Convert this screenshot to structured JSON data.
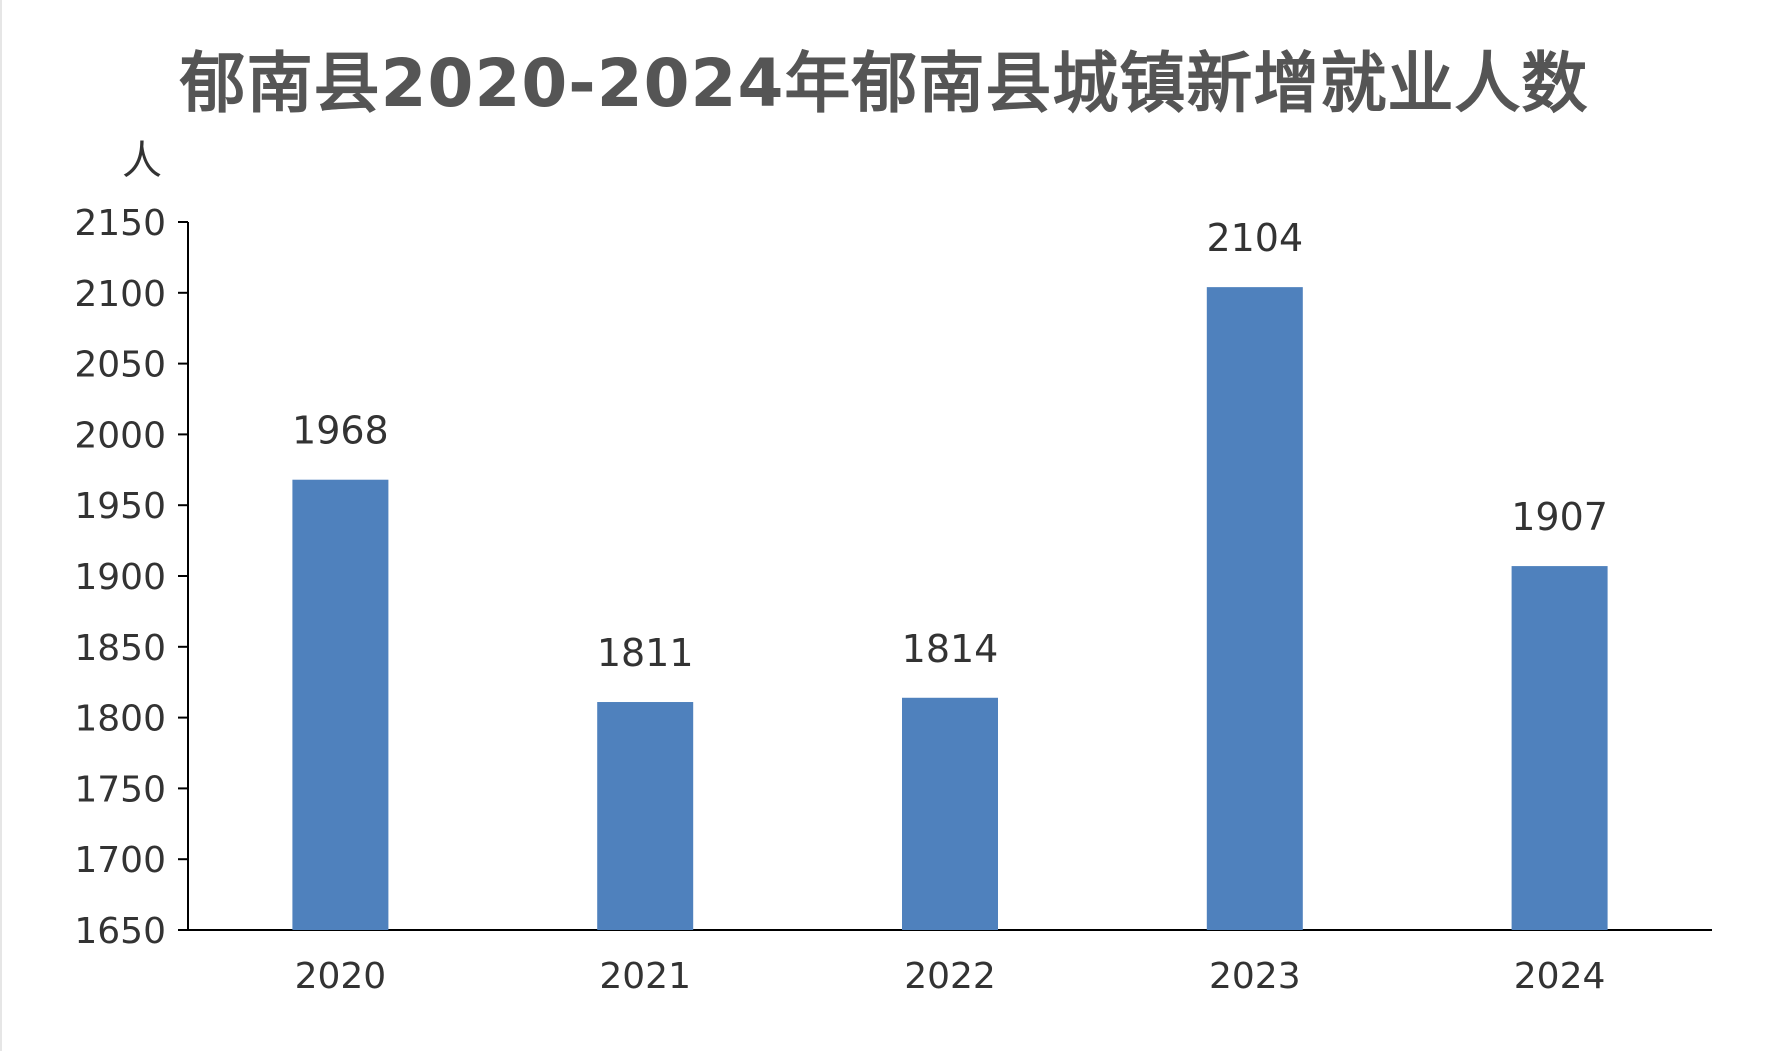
{
  "chart_data": {
    "type": "bar",
    "title": "郁南县2020-2024年郁南县城镇新增就业人数",
    "ylabel": "人",
    "xlabel": "",
    "categories": [
      "2020",
      "2021",
      "2022",
      "2023",
      "2024"
    ],
    "values": [
      1968,
      1811,
      1814,
      2104,
      1907
    ],
    "data_labels": [
      "1968",
      "1811",
      "1814",
      "2104",
      "1907"
    ],
    "ylim": [
      1650,
      2150
    ],
    "yticks": [
      1650,
      1700,
      1750,
      1800,
      1850,
      1900,
      1950,
      2000,
      2050,
      2100,
      2150
    ],
    "bar_color": "#4f81bd",
    "grid": false,
    "legend": "none"
  }
}
